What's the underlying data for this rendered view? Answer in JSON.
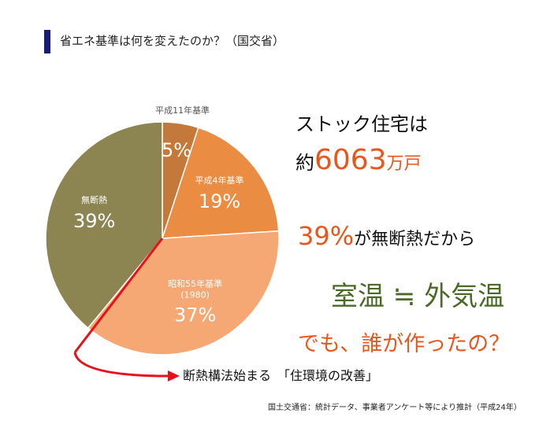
{
  "header": {
    "title": "省エネ基準は何を変えたのか？（国交省）"
  },
  "chart_data": {
    "type": "pie",
    "categories": [
      "平成11年基準",
      "平成4年基準",
      "昭和55年基準\n(1980)",
      "無断熱"
    ],
    "values": [
      5,
      19,
      37,
      39
    ],
    "value_labels": [
      "5%",
      "19%",
      "37%",
      "39%"
    ],
    "colors": [
      "#c4783a",
      "#ea8c41",
      "#f5a873",
      "#8c8552"
    ],
    "annotation": "断熱構法始まる　「住環境の改善」"
  },
  "messages": {
    "stock_prefix": "ストック住宅は",
    "about": "約",
    "stock_count": 6063,
    "stock_unit": "万戸",
    "share": "39%",
    "share_text": "が無断熱だから",
    "room": "室温 ≒ 外気温",
    "question": "でも、誰が作ったの？"
  },
  "source": "国土交通省：統計データ、事業者アンケート等により推計（平成24年）"
}
